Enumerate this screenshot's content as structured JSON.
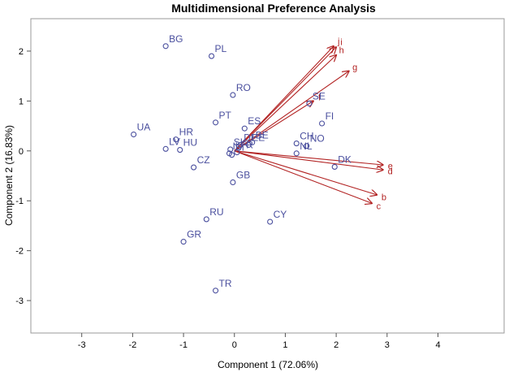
{
  "chart_data": {
    "type": "scatter",
    "title": "Multidimensional Preference Analysis",
    "xlabel": "Component 1 (72.06%)",
    "ylabel": "Component 2 (16.83%)",
    "xlim": [
      -4,
      5.3
    ],
    "ylim": [
      -3.65,
      2.65
    ],
    "xticks": [
      -3,
      -2,
      -1,
      0,
      1,
      2,
      3,
      4
    ],
    "yticks": [
      -3,
      -2,
      -1,
      0,
      1,
      2
    ],
    "grid": false,
    "point_color": "#4a4f9e",
    "vector_color": "#b22222",
    "points": [
      {
        "label": "BG",
        "x": -1.35,
        "y": 2.1
      },
      {
        "label": "PL",
        "x": -0.45,
        "y": 1.9
      },
      {
        "label": "RO",
        "x": -0.03,
        "y": 1.12
      },
      {
        "label": "PT",
        "x": -0.37,
        "y": 0.57
      },
      {
        "label": "ES",
        "x": 0.2,
        "y": 0.45
      },
      {
        "label": "UA",
        "x": -1.98,
        "y": 0.33
      },
      {
        "label": "HR",
        "x": -1.15,
        "y": 0.23
      },
      {
        "label": "LV",
        "x": -1.35,
        "y": 0.04
      },
      {
        "label": "HU",
        "x": -1.07,
        "y": 0.02
      },
      {
        "label": "SK",
        "x": -0.08,
        "y": 0.03
      },
      {
        "label": "DE",
        "x": 0.12,
        "y": 0.12
      },
      {
        "label": "BE",
        "x": 0.35,
        "y": 0.17
      },
      {
        "label": "EE",
        "x": 0.28,
        "y": 0.12
      },
      {
        "label": "SI",
        "x": -0.05,
        "y": -0.08
      },
      {
        "label": "IL",
        "x": -0.1,
        "y": -0.05
      },
      {
        "label": "FR",
        "x": 0.05,
        "y": -0.03
      },
      {
        "label": "CH",
        "x": 1.22,
        "y": 0.15
      },
      {
        "label": "NO",
        "x": 1.42,
        "y": 0.1
      },
      {
        "label": "NL",
        "x": 1.22,
        "y": -0.05
      },
      {
        "label": "SE",
        "x": 1.47,
        "y": 0.95
      },
      {
        "label": "FI",
        "x": 1.72,
        "y": 0.55
      },
      {
        "label": "DK",
        "x": 1.97,
        "y": -0.32
      },
      {
        "label": "CZ",
        "x": -0.8,
        "y": -0.33
      },
      {
        "label": "GB",
        "x": -0.03,
        "y": -0.63
      },
      {
        "label": "RU",
        "x": -0.55,
        "y": -1.37
      },
      {
        "label": "CY",
        "x": 0.7,
        "y": -1.42
      },
      {
        "label": "GR",
        "x": -1.0,
        "y": -1.82
      },
      {
        "label": "TR",
        "x": -0.37,
        "y": -2.8
      }
    ],
    "vectors": [
      {
        "label": "j",
        "x": 1.95,
        "y": 2.1
      },
      {
        "label": "i",
        "x": 2.0,
        "y": 2.08
      },
      {
        "label": "h",
        "x": 2.0,
        "y": 1.92
      },
      {
        "label": "g",
        "x": 2.25,
        "y": 1.6
      },
      {
        "label": "f",
        "x": 1.55,
        "y": 1.0
      },
      {
        "label": "e",
        "x": 2.92,
        "y": -0.28
      },
      {
        "label": "d",
        "x": 2.92,
        "y": -0.38
      },
      {
        "label": "b",
        "x": 2.8,
        "y": -0.88
      },
      {
        "label": "c",
        "x": 2.7,
        "y": -1.05
      }
    ]
  }
}
